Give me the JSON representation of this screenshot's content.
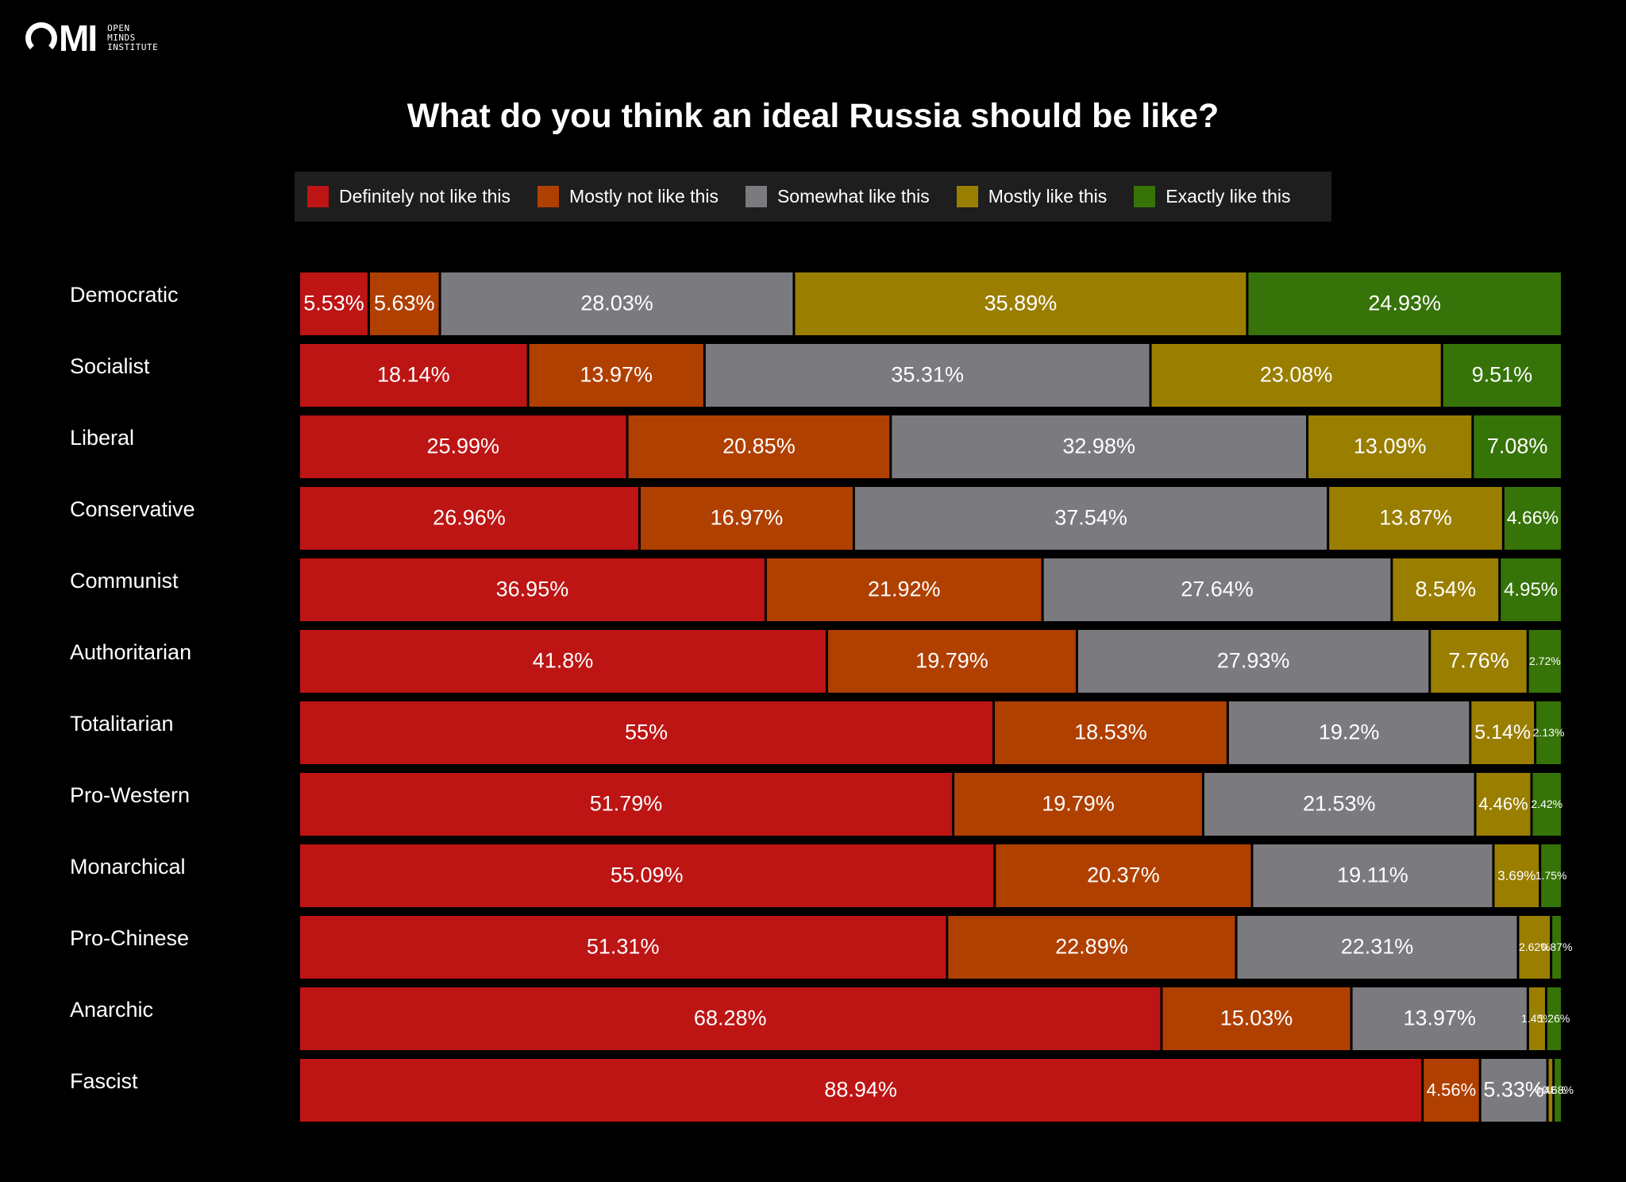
{
  "brand": {
    "mark": "MI",
    "name_lines": [
      "OPEN",
      "MINDS",
      "INSTITUTE"
    ]
  },
  "colors": {
    "background": "#000000",
    "definitely_not": "#bd1414",
    "mostly_not": "#b04000",
    "somewhat": "#7b7a7e",
    "mostly": "#9a7e00",
    "exactly": "#367308",
    "legend_bg": "#1e1e1e"
  },
  "chart_data": {
    "type": "bar",
    "orientation": "horizontal",
    "stacked": true,
    "normalized": true,
    "title": "What do you think an ideal Russia should be like?",
    "legend_position": "top-center",
    "grid": false,
    "categories": [
      "Democratic",
      "Socialist",
      "Liberal",
      "Conservative",
      "Communist",
      "Authoritarian",
      "Totalitarian",
      "Pro-Western",
      "Monarchical",
      "Pro-Chinese",
      "Anarchic",
      "Fascist"
    ],
    "series": [
      {
        "name": "Definitely not like this",
        "color": "#bd1414",
        "values": [
          5.53,
          18.14,
          25.99,
          26.96,
          36.95,
          41.8,
          55,
          51.79,
          55.09,
          51.31,
          68.28,
          88.94
        ],
        "labels": [
          "5.53%",
          "18.14%",
          "25.99%",
          "26.96%",
          "36.95%",
          "41.8%",
          "55%",
          "51.79%",
          "55.09%",
          "51.31%",
          "68.28%",
          "88.94%"
        ]
      },
      {
        "name": "Mostly not like this",
        "color": "#b04000",
        "values": [
          5.63,
          13.97,
          20.85,
          16.97,
          21.92,
          19.79,
          18.53,
          19.79,
          20.37,
          22.89,
          15.03,
          4.56
        ],
        "labels": [
          "5.63%",
          "13.97%",
          "20.85%",
          "16.97%",
          "21.92%",
          "19.79%",
          "18.53%",
          "19.79%",
          "20.37%",
          "22.89%",
          "15.03%",
          "4.56%"
        ]
      },
      {
        "name": "Somewhat like this",
        "color": "#7b7a7e",
        "values": [
          28.03,
          35.31,
          32.98,
          37.54,
          27.64,
          27.93,
          19.2,
          21.53,
          19.11,
          22.31,
          13.97,
          5.33
        ],
        "labels": [
          "28.03%",
          "35.31%",
          "32.98%",
          "37.54%",
          "27.64%",
          "27.93%",
          "19.2%",
          "21.53%",
          "19.11%",
          "22.31%",
          "13.97%",
          "5.33%"
        ]
      },
      {
        "name": "Mostly like this",
        "color": "#9a7e00",
        "values": [
          35.89,
          23.08,
          13.09,
          13.87,
          8.54,
          7.76,
          5.14,
          4.46,
          3.69,
          2.62,
          1.45,
          0.48
        ],
        "labels": [
          "35.89%",
          "23.08%",
          "13.09%",
          "13.87%",
          "8.54%",
          "7.76%",
          "5.14%",
          "4.46%",
          "3.69%",
          "2.62%",
          "1.45%",
          "0.48%"
        ]
      },
      {
        "name": "Exactly like this",
        "color": "#367308",
        "values": [
          24.93,
          9.51,
          7.08,
          4.66,
          4.95,
          2.72,
          2.13,
          2.42,
          1.75,
          0.87,
          1.26,
          0.68
        ],
        "labels": [
          "24.93%",
          "9.51%",
          "7.08%",
          "4.66%",
          "4.95%",
          "2.72%",
          "2.13%",
          "2.42%",
          "1.75%",
          "0.87%",
          "1.26%",
          "0.68%"
        ]
      }
    ]
  }
}
